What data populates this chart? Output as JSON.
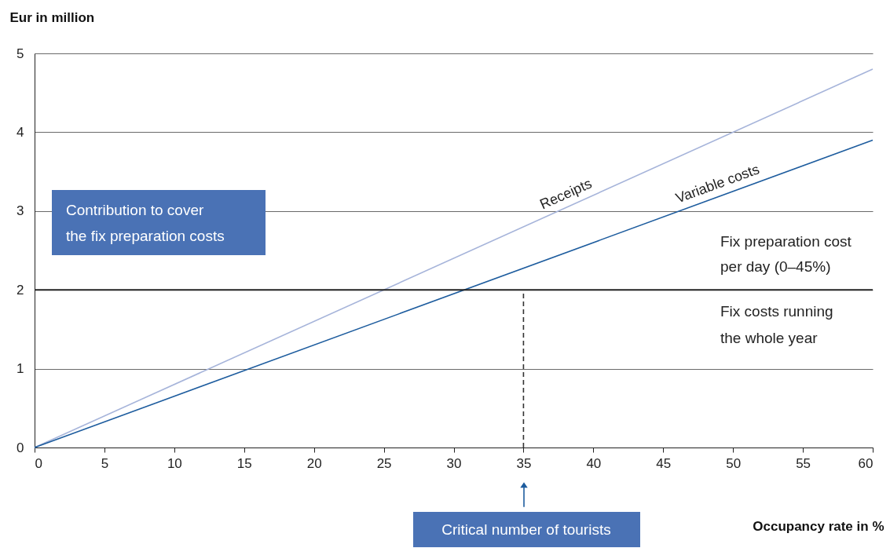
{
  "chart_data": {
    "type": "line",
    "xlabel": "Occupancy rate in %",
    "ylabel": "Eur in million",
    "x": [
      0,
      60
    ],
    "series": [
      {
        "name": "Receipts",
        "color": "#a6b4da",
        "values": [
          0,
          4.8
        ]
      },
      {
        "name": "Variable costs",
        "color": "#1d5c9e",
        "values": [
          0,
          3.9
        ]
      },
      {
        "color": "#333333",
        "x": [
          35,
          35
        ],
        "values": [
          0,
          2
        ],
        "line_style": "dashed"
      }
    ],
    "xlim": [
      0,
      60
    ],
    "xticks": [
      0,
      5,
      10,
      15,
      20,
      25,
      30,
      35,
      40,
      45,
      50,
      55,
      60
    ],
    "ylim": [
      0,
      5
    ],
    "yticks": [
      0,
      1,
      2,
      3,
      4,
      5
    ],
    "grid": "y",
    "ref_lines": [
      {
        "axis": "y",
        "value": 2,
        "color": "#222222"
      }
    ],
    "annotations": [
      "Contribution to cover\nthe fix preparation costs",
      "Fix preparation cost\nper day (0–45%)",
      "Fix costs running\nthe whole year",
      "Critical number of tourists"
    ]
  }
}
